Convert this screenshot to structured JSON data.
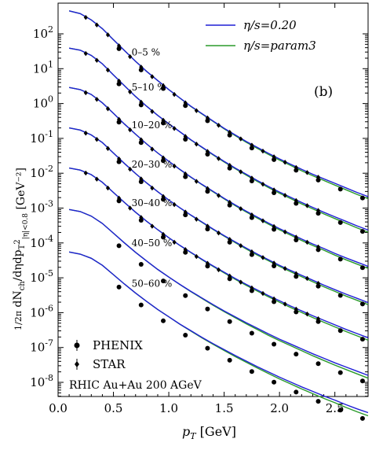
{
  "chart_data": {
    "type": "scatter",
    "xlabel": "p_T [GeV]",
    "ylabel": "(1/2π) dN_ch/dη dp_T² |η|<0.8 [GeV⁻²]",
    "xlim": [
      0.0,
      2.8
    ],
    "ylim_log10": [
      -9,
      3
    ],
    "y_scale": "log",
    "x_ticks": [
      "0.0",
      "0.5",
      "1.0",
      "1.5",
      "2.0",
      "2.5"
    ],
    "y_ticks": [
      "10^2",
      "10^1",
      "10^0",
      "10^-1",
      "10^-2",
      "10^-3",
      "10^-4",
      "10^-5",
      "10^-6",
      "10^-7",
      "10^-8"
    ],
    "panel_label": "(b)",
    "annotation": "RHIC Au+Au 200 AGeV",
    "legend_lines": [
      {
        "name": "η/s=0.20",
        "color": "#1f1fd6"
      },
      {
        "name": "η/s=param3",
        "color": "#2a9a2a"
      }
    ],
    "legend_markers": [
      {
        "name": "PHENIX",
        "marker": "circle"
      },
      {
        "name": "STAR",
        "marker": "diamond"
      }
    ],
    "centralities": [
      {
        "label": "0–5 %",
        "label_x": 0.72,
        "model_log10": [
          2.66,
          2.58,
          2.4,
          2.15,
          1.83,
          1.52,
          1.21,
          0.92,
          0.66,
          0.4,
          0.16,
          -0.08,
          -0.29,
          -0.5,
          -0.71,
          -0.9,
          -1.09,
          -1.26,
          -1.43,
          -1.59,
          -1.74,
          -1.89,
          -2.03,
          -2.16,
          -2.29,
          -2.42,
          -2.55,
          -2.67
        ],
        "model2_shift": 0.06
      },
      {
        "label": "5–10 %",
        "label_x": 0.72,
        "model_log10": [
          1.59,
          1.53,
          1.38,
          1.14,
          0.82,
          0.51,
          0.2,
          -0.08,
          -0.34,
          -0.58,
          -0.81,
          -1.04,
          -1.25,
          -1.46,
          -1.66,
          -1.85,
          -2.03,
          -2.21,
          -2.38,
          -2.54,
          -2.69,
          -2.84,
          -2.98,
          -3.12,
          -3.25,
          -3.38,
          -3.51,
          -3.63
        ],
        "model2_shift": 0.06
      },
      {
        "label": "10–20 %",
        "label_x": 0.72,
        "model_log10": [
          0.46,
          0.4,
          0.26,
          0.02,
          -0.28,
          -0.59,
          -0.88,
          -1.16,
          -1.42,
          -1.66,
          -1.89,
          -2.11,
          -2.32,
          -2.52,
          -2.72,
          -2.91,
          -3.09,
          -3.26,
          -3.43,
          -3.59,
          -3.74,
          -3.89,
          -4.03,
          -4.16,
          -4.3,
          -4.43,
          -4.55,
          -4.67
        ],
        "model2_shift": 0.06
      },
      {
        "label": "20–30 %",
        "label_x": 0.72,
        "model_log10": [
          -0.7,
          -0.76,
          -0.9,
          -1.12,
          -1.42,
          -1.72,
          -2.01,
          -2.28,
          -2.53,
          -2.77,
          -2.99,
          -3.2,
          -3.4,
          -3.6,
          -3.79,
          -3.97,
          -4.15,
          -4.32,
          -4.48,
          -4.64,
          -4.79,
          -4.93,
          -5.07,
          -5.21,
          -5.34,
          -5.47,
          -5.59,
          -5.71
        ],
        "model2_shift": 0.06
      },
      {
        "label": "30–40 %",
        "label_x": 0.72,
        "model_log10": [
          -1.85,
          -1.91,
          -2.04,
          -2.26,
          -2.55,
          -2.84,
          -3.12,
          -3.38,
          -3.62,
          -3.85,
          -4.07,
          -4.27,
          -4.47,
          -4.66,
          -4.84,
          -5.02,
          -5.19,
          -5.35,
          -5.51,
          -5.66,
          -5.81,
          -5.95,
          -6.09,
          -6.22,
          -6.35,
          -6.48,
          -6.6,
          -6.72
        ],
        "model2_shift": 0.07
      },
      {
        "label": "40–50 %",
        "label_x": 0.72,
        "model_log10": [
          -3.04,
          -3.1,
          -3.23,
          -3.44,
          -3.72,
          -4.0,
          -4.27,
          -4.52,
          -4.76,
          -4.98,
          -5.19,
          -5.39,
          -5.58,
          -5.77,
          -5.95,
          -6.12,
          -6.29,
          -6.45,
          -6.61,
          -6.76,
          -6.9,
          -7.04,
          -7.18,
          -7.31,
          -7.44,
          -7.56,
          -7.68,
          -7.8
        ],
        "model2_shift": 0.08
      },
      {
        "label": "50–60 %",
        "label_x": 0.72,
        "model_log10": [
          -4.26,
          -4.32,
          -4.44,
          -4.64,
          -4.91,
          -5.18,
          -5.44,
          -5.68,
          -5.91,
          -6.12,
          -6.33,
          -6.52,
          -6.71,
          -6.89,
          -7.06,
          -7.23,
          -7.39,
          -7.55,
          -7.7,
          -7.85,
          -7.99,
          -8.13,
          -8.26,
          -8.39,
          -8.51,
          -8.64,
          -8.76,
          -8.87
        ],
        "model2_shift": 0.09
      }
    ],
    "model_x": [
      0.1,
      0.2,
      0.3,
      0.4,
      0.5,
      0.6,
      0.7,
      0.8,
      0.9,
      1.0,
      1.1,
      1.2,
      1.3,
      1.4,
      1.5,
      1.6,
      1.7,
      1.8,
      1.9,
      2.0,
      2.1,
      2.2,
      2.3,
      2.4,
      2.5,
      2.6,
      2.7,
      2.8
    ],
    "phenix_x": [
      0.55,
      0.75,
      0.95,
      1.15,
      1.35,
      1.55,
      1.75,
      1.95,
      2.15,
      2.35,
      2.55,
      2.75
    ],
    "phenix_offset": -0.1,
    "star_x": [
      0.25,
      0.35,
      0.45,
      0.55,
      0.65,
      0.75,
      0.85,
      0.95,
      1.05,
      1.15,
      1.25,
      1.35,
      1.45,
      1.55,
      1.65,
      1.75,
      1.85,
      1.95,
      2.05,
      2.15,
      2.25,
      2.35
    ],
    "star_offset": -0.02,
    "star_centralities": 5
  }
}
